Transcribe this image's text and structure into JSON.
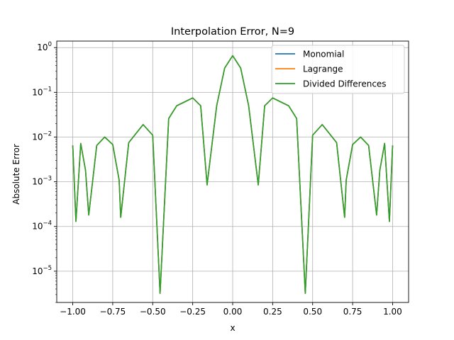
{
  "chart_data": {
    "type": "line",
    "title": "Interpolation Error, N=9",
    "xlabel": "x",
    "ylabel": "Absolute Error",
    "yscale": "log",
    "xlim": [
      -1.1,
      1.1
    ],
    "ylim": [
      2e-06,
      1.4
    ],
    "xticks": [
      -1.0,
      -0.75,
      -0.5,
      -0.25,
      0.0,
      0.25,
      0.5,
      0.75,
      1.0
    ],
    "xtick_labels": [
      "−1.00",
      "−0.75",
      "−0.50",
      "−0.25",
      "0.00",
      "0.25",
      "0.50",
      "0.75",
      "1.00"
    ],
    "yticks": [
      1e-05,
      0.0001,
      0.001,
      0.01,
      0.1,
      1
    ],
    "ytick_labels": [
      {
        "base": "10",
        "exp": "−5"
      },
      {
        "base": "10",
        "exp": "−4"
      },
      {
        "base": "10",
        "exp": "−3"
      },
      {
        "base": "10",
        "exp": "−2"
      },
      {
        "base": "10",
        "exp": "−1"
      },
      {
        "base": "10",
        "exp": "0"
      }
    ],
    "grid": true,
    "legend_position": "top-right",
    "series": [
      {
        "name": "Monomial",
        "color": "#1f77b4"
      },
      {
        "name": "Lagrange",
        "color": "#ff7f0e"
      },
      {
        "name": "Divided Differences",
        "color": "#2ca02c"
      }
    ],
    "error_curve": {
      "x": [
        -1.0,
        -0.98,
        -0.95,
        -0.92,
        -0.9,
        -0.85,
        -0.8,
        -0.75,
        -0.71,
        -0.7,
        -0.65,
        -0.56,
        -0.5,
        -0.454,
        -0.4,
        -0.35,
        -0.25,
        -0.2,
        -0.16,
        -0.1,
        -0.05,
        0.0,
        0.05,
        0.1,
        0.16,
        0.2,
        0.25,
        0.35,
        0.4,
        0.454,
        0.5,
        0.56,
        0.65,
        0.7,
        0.71,
        0.75,
        0.8,
        0.85,
        0.9,
        0.92,
        0.95,
        0.98,
        1.0
      ],
      "y": [
        0.0065,
        0.00013,
        0.0072,
        0.0018,
        0.00018,
        0.0065,
        0.01,
        0.0068,
        0.0011,
        0.00016,
        0.0075,
        0.019,
        0.011,
        3.2e-06,
        0.026,
        0.05,
        0.075,
        0.05,
        0.00085,
        0.05,
        0.35,
        0.66,
        0.35,
        0.05,
        0.00085,
        0.05,
        0.075,
        0.05,
        0.026,
        3.2e-06,
        0.011,
        0.019,
        0.0075,
        0.00016,
        0.0011,
        0.0068,
        0.01,
        0.0065,
        0.00018,
        0.0018,
        0.0072,
        0.00013,
        0.0065
      ]
    }
  }
}
